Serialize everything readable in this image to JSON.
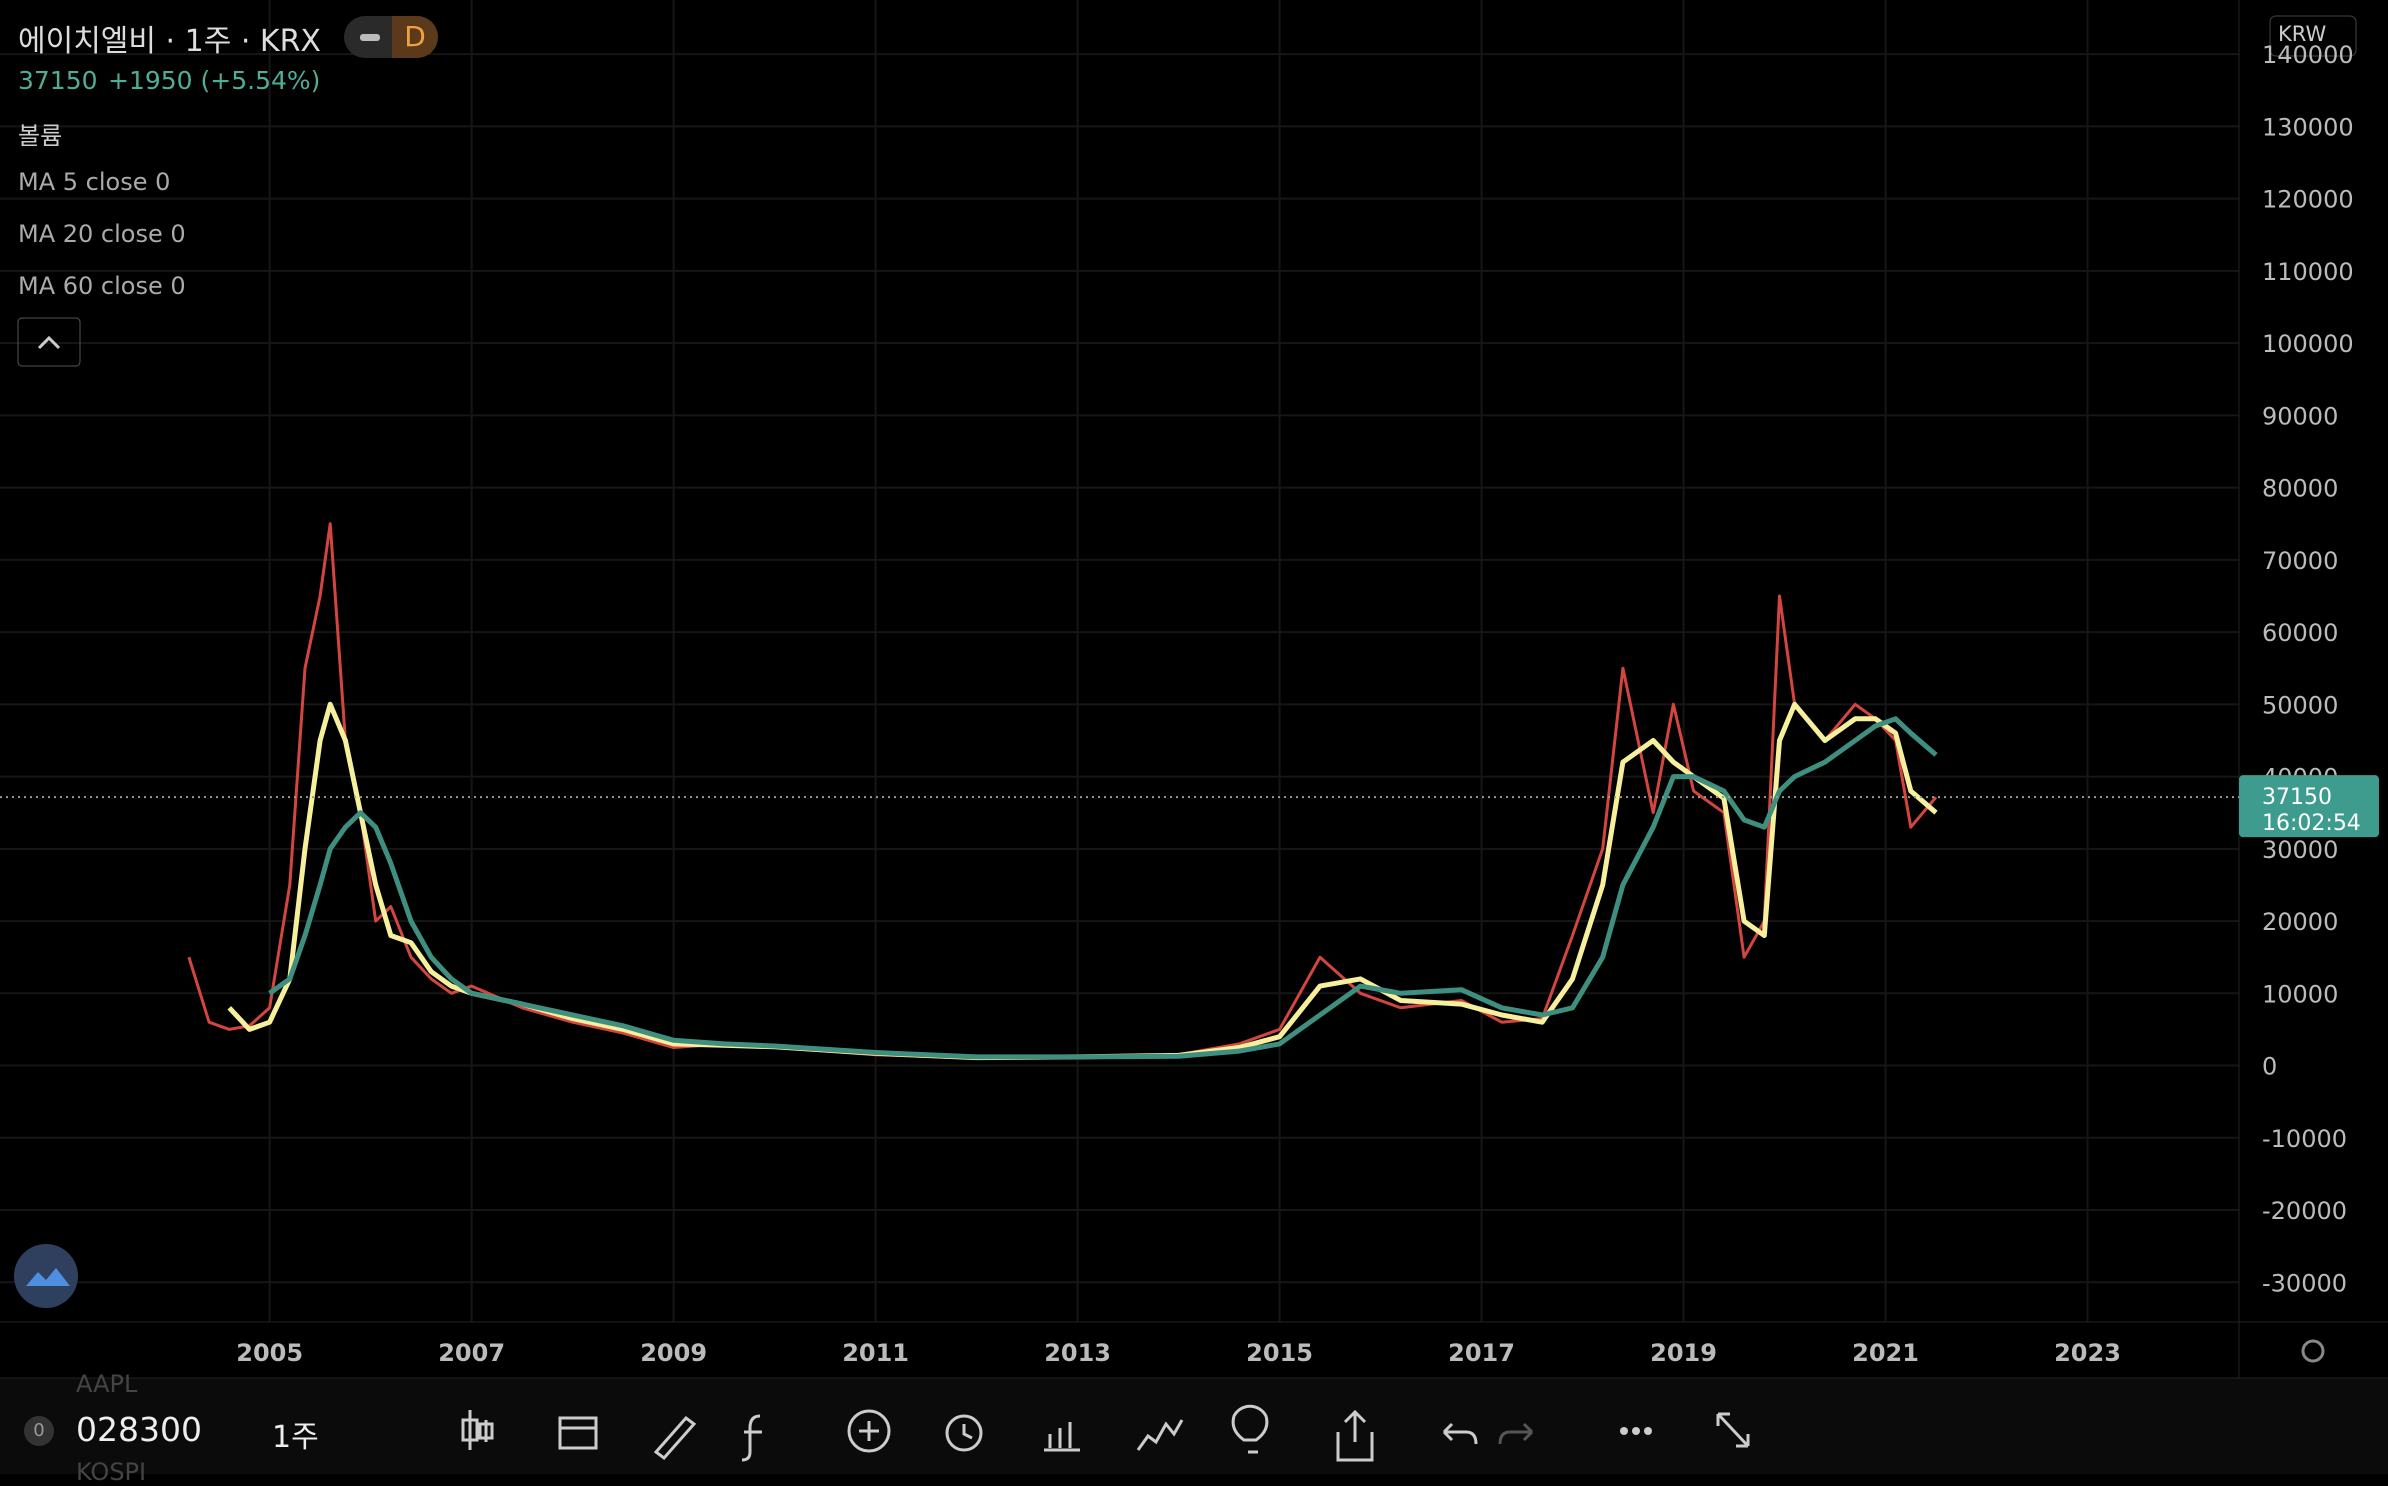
{
  "header": {
    "title": "에이치엘비 · 1주 · KRX",
    "badge": "D",
    "price": "37150",
    "change": "+1950 (+5.54%)",
    "indicators": [
      "볼륨",
      "MA 5 close 0",
      "MA 20 close 0",
      "MA 60 close 0"
    ],
    "currency": "KRW"
  },
  "toolbar": {
    "count": "0",
    "symbol": "028300",
    "interval": "1주",
    "behind": [
      "AAPL",
      "KOSPI"
    ]
  },
  "chart_data": {
    "type": "line",
    "x": [
      2004.2,
      2004.4,
      2004.6,
      2004.8,
      2005.0,
      2005.2,
      2005.35,
      2005.5,
      2005.6,
      2005.75,
      2005.9,
      2006.05,
      2006.2,
      2006.4,
      2006.6,
      2006.8,
      2007.0,
      2007.5,
      2008.0,
      2008.5,
      2009.0,
      2009.5,
      2010.0,
      2011.0,
      2012.0,
      2013.0,
      2014.0,
      2014.6,
      2015.0,
      2015.4,
      2015.8,
      2016.2,
      2016.8,
      2017.2,
      2017.6,
      2017.9,
      2018.2,
      2018.4,
      2018.7,
      2018.9,
      2019.1,
      2019.4,
      2019.6,
      2019.8,
      2019.95,
      2020.1,
      2020.4,
      2020.7,
      2020.9,
      2021.1,
      2021.25,
      2021.5
    ],
    "series": [
      {
        "name": "close",
        "color": "#d2463f",
        "values": [
          15000,
          6000,
          5000,
          5500,
          8000,
          25000,
          55000,
          65000,
          75000,
          45000,
          35000,
          20000,
          22000,
          15000,
          12000,
          10000,
          11000,
          8000,
          6000,
          4500,
          2500,
          3000,
          2500,
          1500,
          1000,
          1200,
          1500,
          3000,
          5000,
          15000,
          10000,
          8000,
          9000,
          6000,
          6500,
          18000,
          30000,
          55000,
          35000,
          50000,
          38000,
          35000,
          15000,
          20000,
          65000,
          50000,
          45000,
          50000,
          48000,
          45000,
          33000,
          37150
        ]
      },
      {
        "name": "MA 5",
        "color": "#f6ef9c",
        "values": [
          null,
          null,
          8000,
          5000,
          6000,
          12000,
          30000,
          45000,
          50000,
          45000,
          35000,
          25000,
          18000,
          17000,
          13000,
          11000,
          10000,
          8500,
          6500,
          5000,
          3000,
          2800,
          2600,
          1700,
          1100,
          1200,
          1400,
          2500,
          4000,
          11000,
          12000,
          9000,
          8500,
          7000,
          6000,
          12000,
          25000,
          42000,
          45000,
          42000,
          40000,
          37000,
          20000,
          18000,
          45000,
          50000,
          45000,
          48000,
          48000,
          46000,
          38000,
          35000
        ]
      },
      {
        "name": "MA 20",
        "color": "#3f8f80",
        "values": [
          null,
          null,
          null,
          null,
          10000,
          12000,
          18000,
          25000,
          30000,
          33000,
          35000,
          33000,
          28000,
          20000,
          15000,
          12000,
          10000,
          8500,
          7000,
          5500,
          3500,
          3000,
          2700,
          1800,
          1200,
          1200,
          1300,
          2000,
          3000,
          7000,
          11000,
          10000,
          10500,
          8000,
          7000,
          8000,
          15000,
          25000,
          33000,
          40000,
          40000,
          38000,
          34000,
          33000,
          38000,
          40000,
          42000,
          45000,
          47000,
          48000,
          46000,
          43000
        ]
      }
    ],
    "xlim": [
      2002.33,
      2024.5
    ],
    "xticks": [
      2005,
      2007,
      2009,
      2011,
      2013,
      2015,
      2017,
      2019,
      2021,
      2023
    ],
    "ylim": [
      -35500,
      147500
    ],
    "yticks": [
      -30000,
      -20000,
      -10000,
      0,
      10000,
      20000,
      30000,
      40000,
      50000,
      60000,
      70000,
      80000,
      90000,
      100000,
      110000,
      120000,
      130000,
      140000
    ],
    "grid": true,
    "last_price": {
      "value": 37150,
      "time": "16:02:54"
    }
  }
}
